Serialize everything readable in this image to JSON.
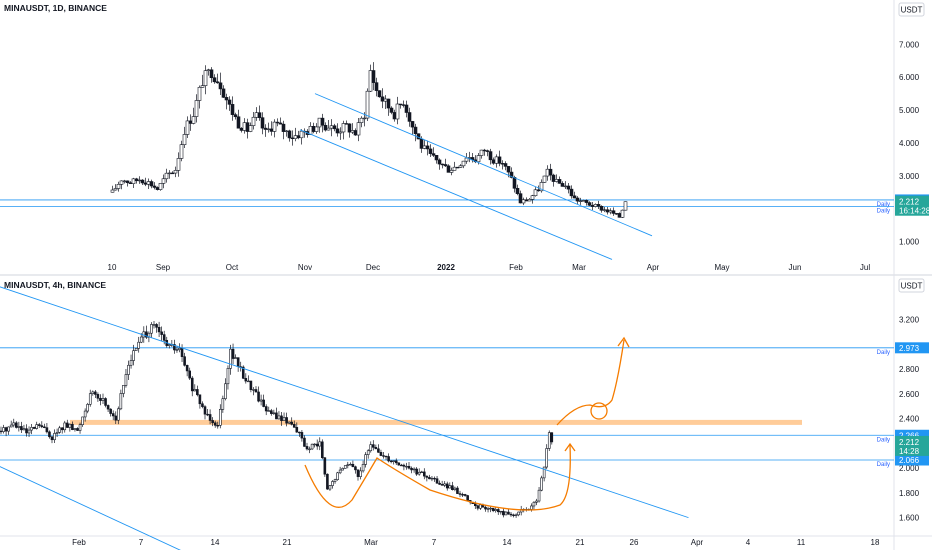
{
  "colors": {
    "up": "#26a69a",
    "down": "#ef5350",
    "candle": "#131722",
    "channel": "#2196f3",
    "level": "#2196f3",
    "zone": "#ffcc99",
    "projection": "#f57c00",
    "tag_blue": "#2196f3",
    "tag_green": "#26a69a"
  },
  "chart_data": [
    {
      "type": "candlestick",
      "title": "MINAUSDT, 1D, BINANCE",
      "currency": "USDT",
      "y_ticks": [
        "7.000",
        "6.000",
        "5.000",
        "4.000",
        "3.000",
        "1.000"
      ],
      "y_range": [
        0.5,
        7.8
      ],
      "x_labels": [
        "10",
        "Sep",
        "Oct",
        "Nov",
        "Dec",
        "2022",
        "Feb",
        "Mar",
        "Apr",
        "May",
        "Jun",
        "Jul"
      ],
      "price_path": [
        [
          0,
          2.5
        ],
        [
          3,
          2.9
        ],
        [
          6,
          2.8
        ],
        [
          9,
          2.9
        ],
        [
          12,
          2.8
        ],
        [
          15,
          2.6
        ],
        [
          18,
          3.0
        ],
        [
          21,
          3.2
        ],
        [
          24,
          4.4
        ],
        [
          27,
          4.9
        ],
        [
          30,
          5.9
        ],
        [
          33,
          6.2
        ],
        [
          36,
          5.8
        ],
        [
          39,
          5.1
        ],
        [
          42,
          4.6
        ],
        [
          45,
          4.4
        ],
        [
          48,
          4.8
        ],
        [
          51,
          4.3
        ],
        [
          54,
          4.6
        ],
        [
          57,
          4.4
        ],
        [
          60,
          4.2
        ],
        [
          63,
          4.3
        ],
        [
          66,
          4.4
        ],
        [
          69,
          4.6
        ],
        [
          72,
          4.5
        ],
        [
          75,
          4.4
        ],
        [
          78,
          4.5
        ],
        [
          81,
          4.3
        ],
        [
          84,
          4.9
        ],
        [
          86,
          6.2
        ],
        [
          88,
          5.6
        ],
        [
          91,
          5.2
        ],
        [
          94,
          4.9
        ],
        [
          97,
          5.3
        ],
        [
          100,
          4.5
        ],
        [
          103,
          3.9
        ],
        [
          106,
          3.6
        ],
        [
          109,
          3.4
        ],
        [
          112,
          3.2
        ],
        [
          115,
          3.3
        ],
        [
          118,
          3.6
        ],
        [
          121,
          3.5
        ],
        [
          124,
          3.8
        ],
        [
          127,
          3.5
        ],
        [
          130,
          3.4
        ],
        [
          133,
          2.9
        ],
        [
          136,
          2.2
        ],
        [
          139,
          2.3
        ],
        [
          142,
          2.6
        ],
        [
          145,
          3.1
        ],
        [
          148,
          2.8
        ],
        [
          151,
          2.7
        ],
        [
          154,
          2.3
        ],
        [
          157,
          2.2
        ],
        [
          160,
          2.1
        ],
        [
          163,
          2.0
        ],
        [
          166,
          1.9
        ],
        [
          169,
          1.75
        ],
        [
          171,
          2.212
        ]
      ],
      "channel": {
        "upper": [
          [
            68,
            5.5
          ],
          [
            155,
            2.15
          ]
        ],
        "lower": [
          [
            63,
            4.4
          ],
          [
            150,
            1.1
          ]
        ]
      },
      "levels": [
        {
          "value": 2.266,
          "tag": "2.266",
          "label": "Daily"
        },
        {
          "value": 2.066,
          "tag": "2.066",
          "label": "Daily"
        }
      ],
      "current": {
        "price": "2.212",
        "countdown": "16:14:28"
      }
    },
    {
      "type": "candlestick",
      "title": "MINAUSDT, 4h, BINANCE",
      "currency": "USDT",
      "y_ticks": [
        "3.200",
        "2.800",
        "2.600",
        "2.400",
        "2.000",
        "1.800",
        "1.600"
      ],
      "y_range": [
        1.5,
        3.4
      ],
      "x_labels": [
        "Feb",
        "7",
        "14",
        "21",
        "Mar",
        "7",
        "14",
        "21",
        "26",
        "Apr",
        "4",
        "11",
        "18"
      ],
      "price_path": [
        [
          0,
          2.3
        ],
        [
          5,
          2.36
        ],
        [
          10,
          2.28
        ],
        [
          15,
          2.35
        ],
        [
          20,
          2.25
        ],
        [
          25,
          2.35
        ],
        [
          30,
          2.3
        ],
        [
          35,
          2.6
        ],
        [
          40,
          2.55
        ],
        [
          45,
          2.4
        ],
        [
          50,
          2.85
        ],
        [
          55,
          3.05
        ],
        [
          60,
          3.15
        ],
        [
          65,
          3.0
        ],
        [
          70,
          2.95
        ],
        [
          75,
          2.65
        ],
        [
          80,
          2.45
        ],
        [
          85,
          2.35
        ],
        [
          90,
          2.95
        ],
        [
          95,
          2.75
        ],
        [
          100,
          2.6
        ],
        [
          105,
          2.45
        ],
        [
          110,
          2.4
        ],
        [
          115,
          2.35
        ],
        [
          120,
          2.15
        ],
        [
          125,
          2.2
        ],
        [
          128,
          1.82
        ],
        [
          132,
          1.95
        ],
        [
          136,
          2.05
        ],
        [
          140,
          1.95
        ],
        [
          145,
          2.18
        ],
        [
          150,
          2.1
        ],
        [
          155,
          2.05
        ],
        [
          160,
          2.0
        ],
        [
          165,
          1.95
        ],
        [
          170,
          1.9
        ],
        [
          175,
          1.85
        ],
        [
          180,
          1.8
        ],
        [
          185,
          1.7
        ],
        [
          190,
          1.68
        ],
        [
          195,
          1.65
        ],
        [
          200,
          1.62
        ],
        [
          205,
          1.66
        ],
        [
          210,
          1.72
        ],
        [
          213,
          2.0
        ],
        [
          215,
          2.3
        ],
        [
          216,
          2.212
        ]
      ],
      "channel": {
        "upper": [
          [
            -5,
            3.5
          ],
          [
            270,
            1.6
          ]
        ],
        "lower": [
          [
            -5,
            2.06
          ],
          [
            85,
            1.2
          ]
        ]
      },
      "zone": {
        "value": 2.37
      },
      "levels": [
        {
          "value": 2.973,
          "tag": "2.973",
          "label": "Daily"
        },
        {
          "value": 2.266,
          "tag": "2.266",
          "label": "Daily"
        },
        {
          "value": 2.066,
          "tag": "2.066",
          "label": "Daily"
        }
      ],
      "current": {
        "price": "2.212",
        "countdown": "14:28"
      }
    }
  ]
}
